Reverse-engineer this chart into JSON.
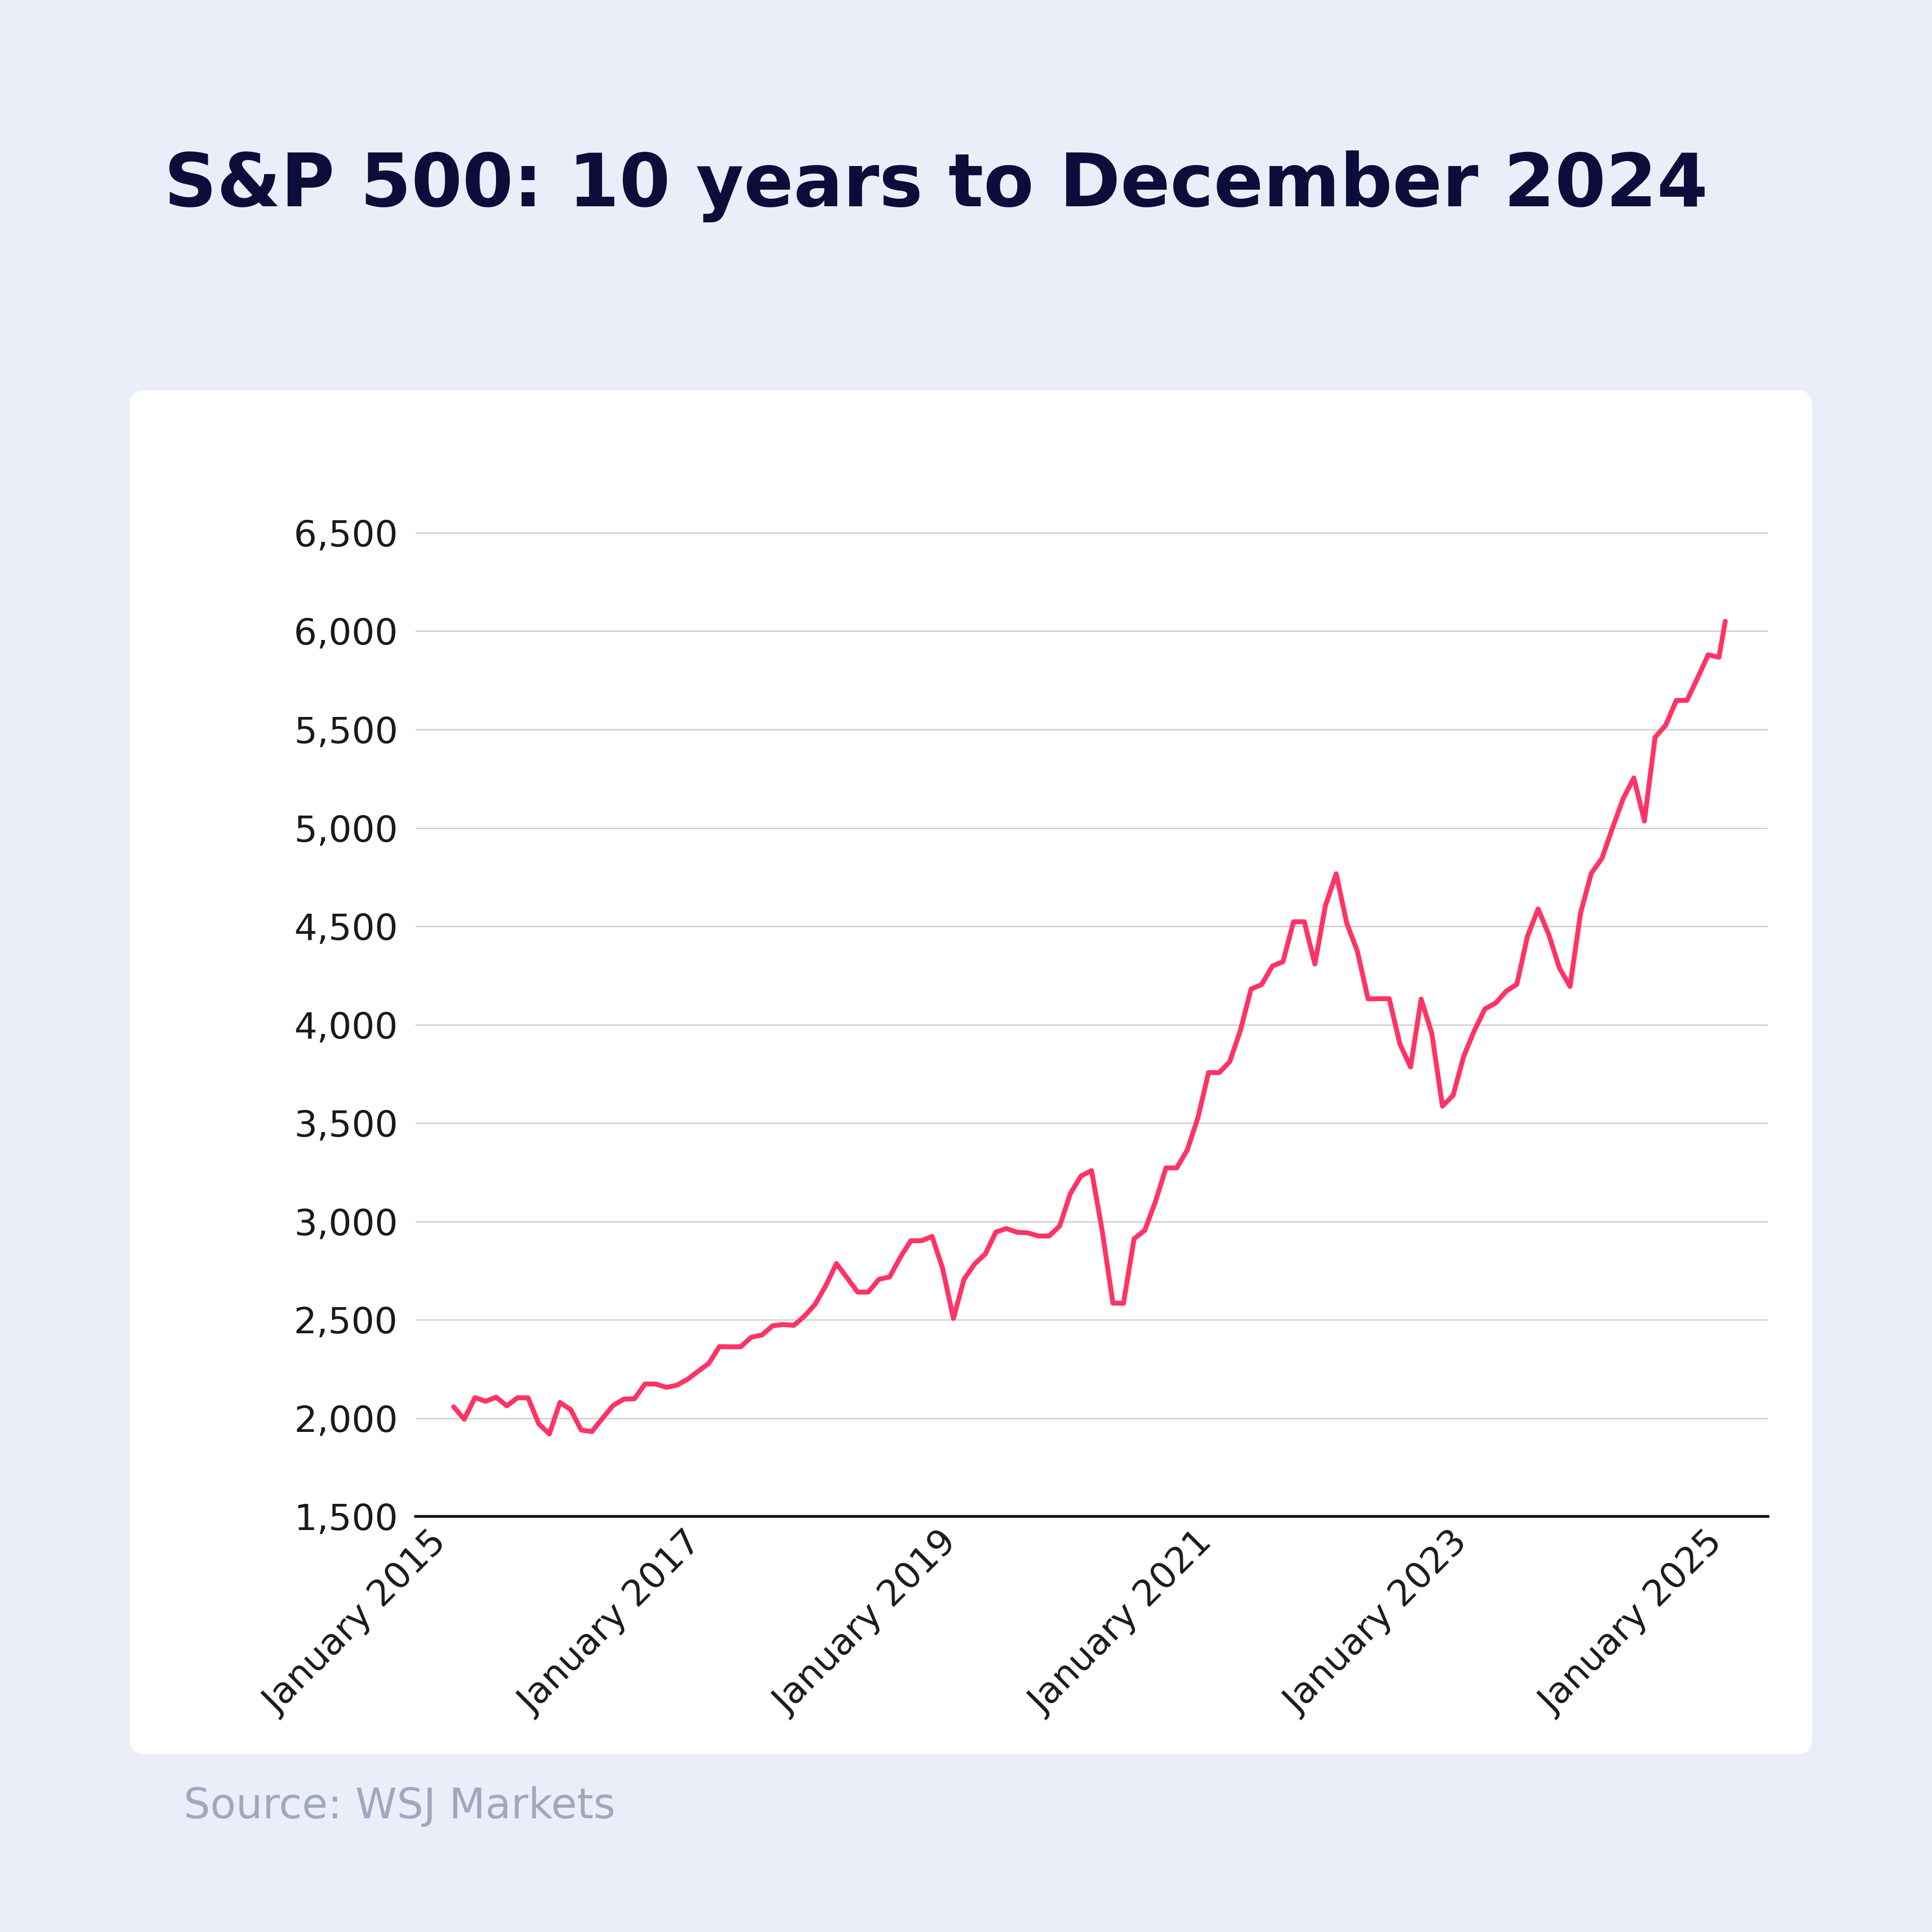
{
  "title": "S&P 500: 10 years to December 2024",
  "source": "Source: WSJ Markets",
  "line_color": "#FF3366",
  "background_outer": "#EBEEf8",
  "background_inner": "#FFFFFF",
  "title_color": "#0D0D3B",
  "source_color": "#A0A8C0",
  "yticks": [
    1500,
    2000,
    2500,
    3000,
    3500,
    4000,
    4500,
    5000,
    5500,
    6000,
    6500
  ],
  "ylim": [
    1500,
    6900
  ],
  "xtick_labels": [
    "January 2015",
    "January 2017",
    "January 2019",
    "January 2021",
    "January 2023",
    "January 2025"
  ],
  "xtick_positions": [
    2015.0,
    2017.0,
    2019.0,
    2021.0,
    2023.0,
    2025.0
  ],
  "xlim": [
    2014.7,
    2025.3
  ],
  "sp500_data": [
    [
      2015.0,
      2058
    ],
    [
      2015.083,
      1995
    ],
    [
      2015.167,
      2105
    ],
    [
      2015.25,
      2086
    ],
    [
      2015.333,
      2107
    ],
    [
      2015.417,
      2063
    ],
    [
      2015.5,
      2104
    ],
    [
      2015.583,
      2104
    ],
    [
      2015.667,
      1972
    ],
    [
      2015.75,
      1920
    ],
    [
      2015.833,
      2080
    ],
    [
      2015.917,
      2044
    ],
    [
      2016.0,
      1940
    ],
    [
      2016.083,
      1932
    ],
    [
      2016.167,
      2000
    ],
    [
      2016.25,
      2065
    ],
    [
      2016.333,
      2097
    ],
    [
      2016.417,
      2099
    ],
    [
      2016.5,
      2174
    ],
    [
      2016.583,
      2174
    ],
    [
      2016.667,
      2157
    ],
    [
      2016.75,
      2168
    ],
    [
      2016.833,
      2198
    ],
    [
      2016.917,
      2239
    ],
    [
      2017.0,
      2279
    ],
    [
      2017.083,
      2364
    ],
    [
      2017.167,
      2363
    ],
    [
      2017.25,
      2363
    ],
    [
      2017.333,
      2412
    ],
    [
      2017.417,
      2423
    ],
    [
      2017.5,
      2470
    ],
    [
      2017.583,
      2476
    ],
    [
      2017.667,
      2472
    ],
    [
      2017.75,
      2519
    ],
    [
      2017.833,
      2579
    ],
    [
      2017.917,
      2674
    ],
    [
      2018.0,
      2786
    ],
    [
      2018.083,
      2714
    ],
    [
      2018.167,
      2641
    ],
    [
      2018.25,
      2641
    ],
    [
      2018.333,
      2706
    ],
    [
      2018.417,
      2718
    ],
    [
      2018.5,
      2817
    ],
    [
      2018.583,
      2902
    ],
    [
      2018.667,
      2902
    ],
    [
      2018.75,
      2924
    ],
    [
      2018.833,
      2760
    ],
    [
      2018.917,
      2507
    ],
    [
      2019.0,
      2706
    ],
    [
      2019.083,
      2784
    ],
    [
      2019.167,
      2835
    ],
    [
      2019.25,
      2946
    ],
    [
      2019.333,
      2964
    ],
    [
      2019.417,
      2945
    ],
    [
      2019.5,
      2942
    ],
    [
      2019.583,
      2926
    ],
    [
      2019.667,
      2926
    ],
    [
      2019.75,
      2977
    ],
    [
      2019.833,
      3141
    ],
    [
      2019.917,
      3231
    ],
    [
      2020.0,
      3258
    ],
    [
      2020.083,
      2954
    ],
    [
      2020.167,
      2585
    ],
    [
      2020.25,
      2584
    ],
    [
      2020.333,
      2912
    ],
    [
      2020.417,
      2955
    ],
    [
      2020.5,
      3100
    ],
    [
      2020.583,
      3272
    ],
    [
      2020.667,
      3272
    ],
    [
      2020.75,
      3363
    ],
    [
      2020.833,
      3526
    ],
    [
      2020.917,
      3757
    ],
    [
      2021.0,
      3756
    ],
    [
      2021.083,
      3812
    ],
    [
      2021.167,
      3972
    ],
    [
      2021.25,
      4181
    ],
    [
      2021.333,
      4204
    ],
    [
      2021.417,
      4298
    ],
    [
      2021.5,
      4320
    ],
    [
      2021.583,
      4523
    ],
    [
      2021.667,
      4523
    ],
    [
      2021.75,
      4308
    ],
    [
      2021.833,
      4605
    ],
    [
      2021.917,
      4767
    ],
    [
      2022.0,
      4516
    ],
    [
      2022.083,
      4374
    ],
    [
      2022.167,
      4131
    ],
    [
      2022.25,
      4132
    ],
    [
      2022.333,
      4132
    ],
    [
      2022.417,
      3901
    ],
    [
      2022.5,
      3785
    ],
    [
      2022.583,
      4130
    ],
    [
      2022.667,
      3955
    ],
    [
      2022.75,
      3586
    ],
    [
      2022.833,
      3640
    ],
    [
      2022.917,
      3840
    ],
    [
      2023.0,
      3970
    ],
    [
      2023.083,
      4080
    ],
    [
      2023.167,
      4110
    ],
    [
      2023.25,
      4170
    ],
    [
      2023.333,
      4205
    ],
    [
      2023.417,
      4450
    ],
    [
      2023.5,
      4588
    ],
    [
      2023.583,
      4459
    ],
    [
      2023.667,
      4288
    ],
    [
      2023.75,
      4194
    ],
    [
      2023.833,
      4568
    ],
    [
      2023.917,
      4770
    ],
    [
      2024.0,
      4845
    ],
    [
      2024.083,
      5000
    ],
    [
      2024.167,
      5149
    ],
    [
      2024.25,
      5254
    ],
    [
      2024.333,
      5035
    ],
    [
      2024.417,
      5461
    ],
    [
      2024.5,
      5522
    ],
    [
      2024.583,
      5648
    ],
    [
      2024.667,
      5648
    ],
    [
      2024.75,
      5762
    ],
    [
      2024.833,
      5880
    ],
    [
      2024.917,
      5867
    ],
    [
      2024.967,
      6050
    ]
  ]
}
